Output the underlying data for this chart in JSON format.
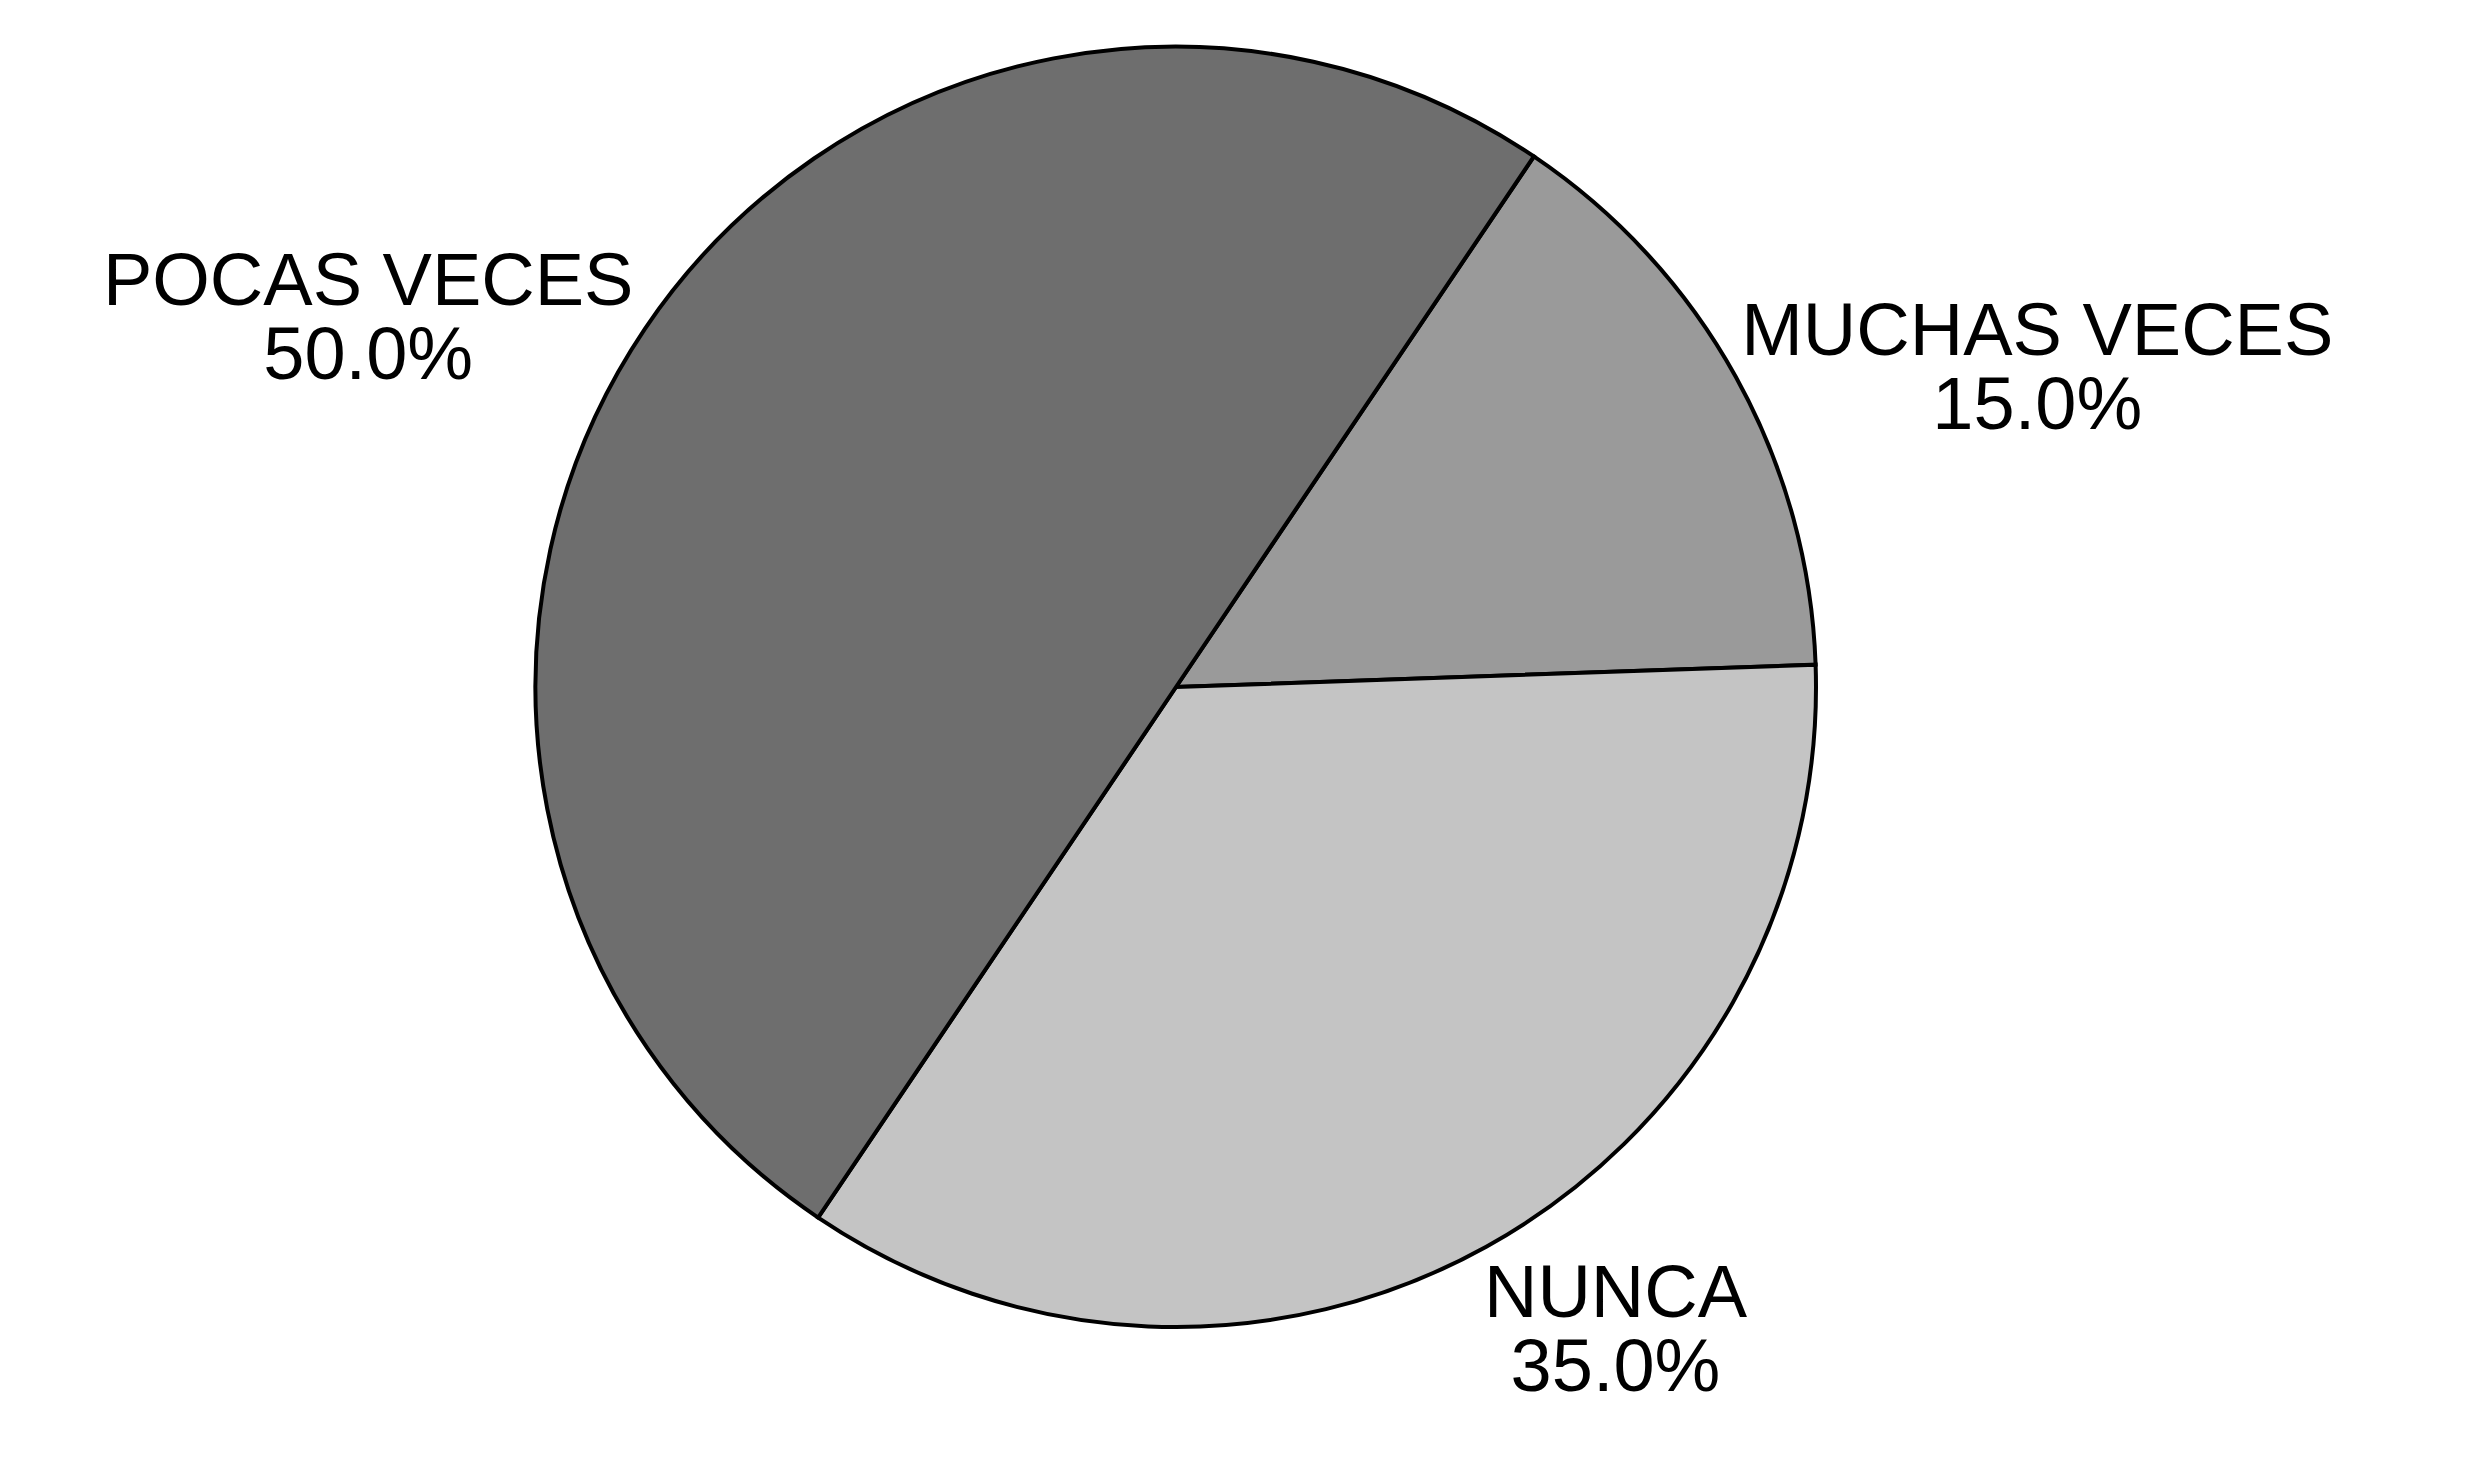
{
  "chart_data": {
    "type": "pie",
    "categories": [
      "MUCHAS VECES",
      "NUNCA",
      "POCAS VECES"
    ],
    "values": [
      15,
      35,
      50
    ],
    "value_labels": [
      "15.0%",
      "35.0%",
      "50.0%"
    ],
    "colors": [
      "#9a9a9a",
      "#c4c4c4",
      "#6e6e6e"
    ]
  }
}
